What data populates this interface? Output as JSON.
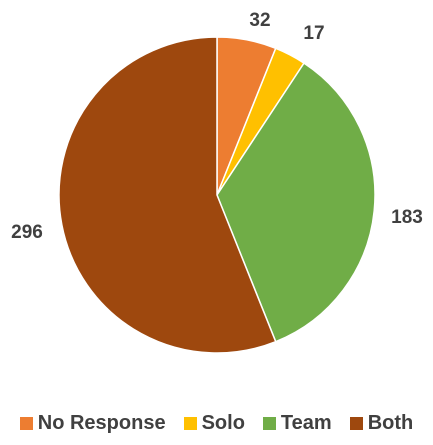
{
  "chart_data": {
    "type": "pie",
    "categories": [
      "No Response",
      "Solo",
      "Team",
      "Both"
    ],
    "values": [
      32,
      17,
      183,
      296
    ],
    "colors": [
      "#ED7D31",
      "#FFC000",
      "#70AD47",
      "#9E480E"
    ],
    "legend_position": "bottom",
    "start_angle": "12 o'clock, clockwise"
  },
  "legend": [
    {
      "label": "No Response",
      "color": "#ED7D31"
    },
    {
      "label": "Solo",
      "color": "#FFC000"
    },
    {
      "label": "Team",
      "color": "#70AD47"
    },
    {
      "label": "Both",
      "color": "#9E480E"
    }
  ]
}
